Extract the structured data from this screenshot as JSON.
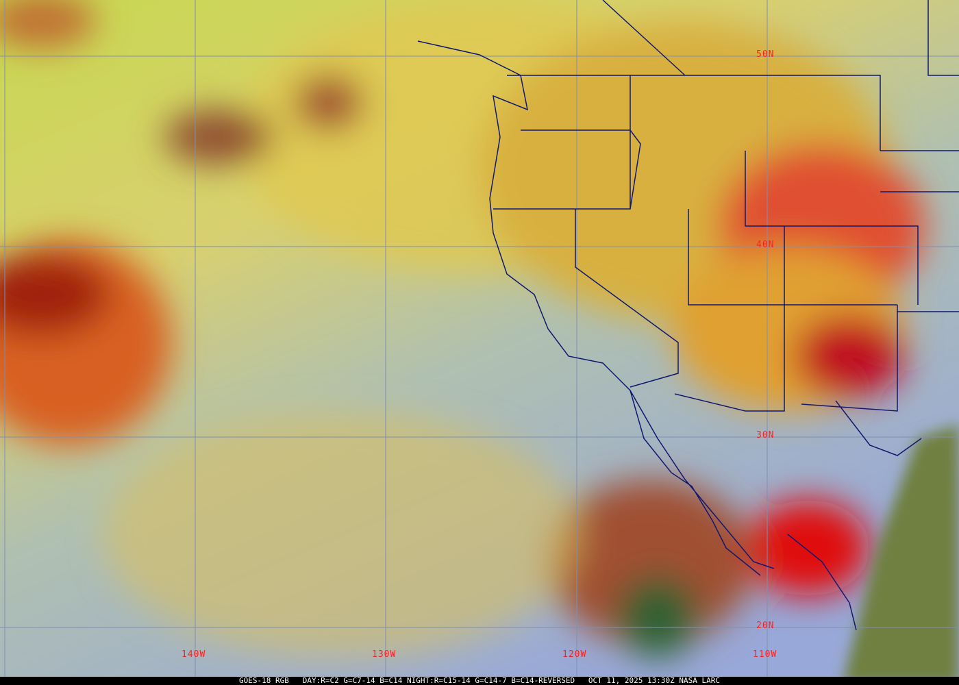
{
  "map": {
    "type": "satellite-rgb-composite",
    "latitude_labels": [
      "50N",
      "40N",
      "30N",
      "20N"
    ],
    "longitude_labels": [
      "140W",
      "130W",
      "120W",
      "110W"
    ],
    "grid_color": "#7f8fb0",
    "label_color": "#ff2020",
    "border_color": "#101870"
  },
  "footer": {
    "caption": "GOES-18 RGB   DAY:R=C2 G=C7-14 B=C14 NIGHT:R=C15-14 G=C14-7 B=C14-REVERSED   OCT 11, 2025 13:30Z NASA LARC"
  }
}
